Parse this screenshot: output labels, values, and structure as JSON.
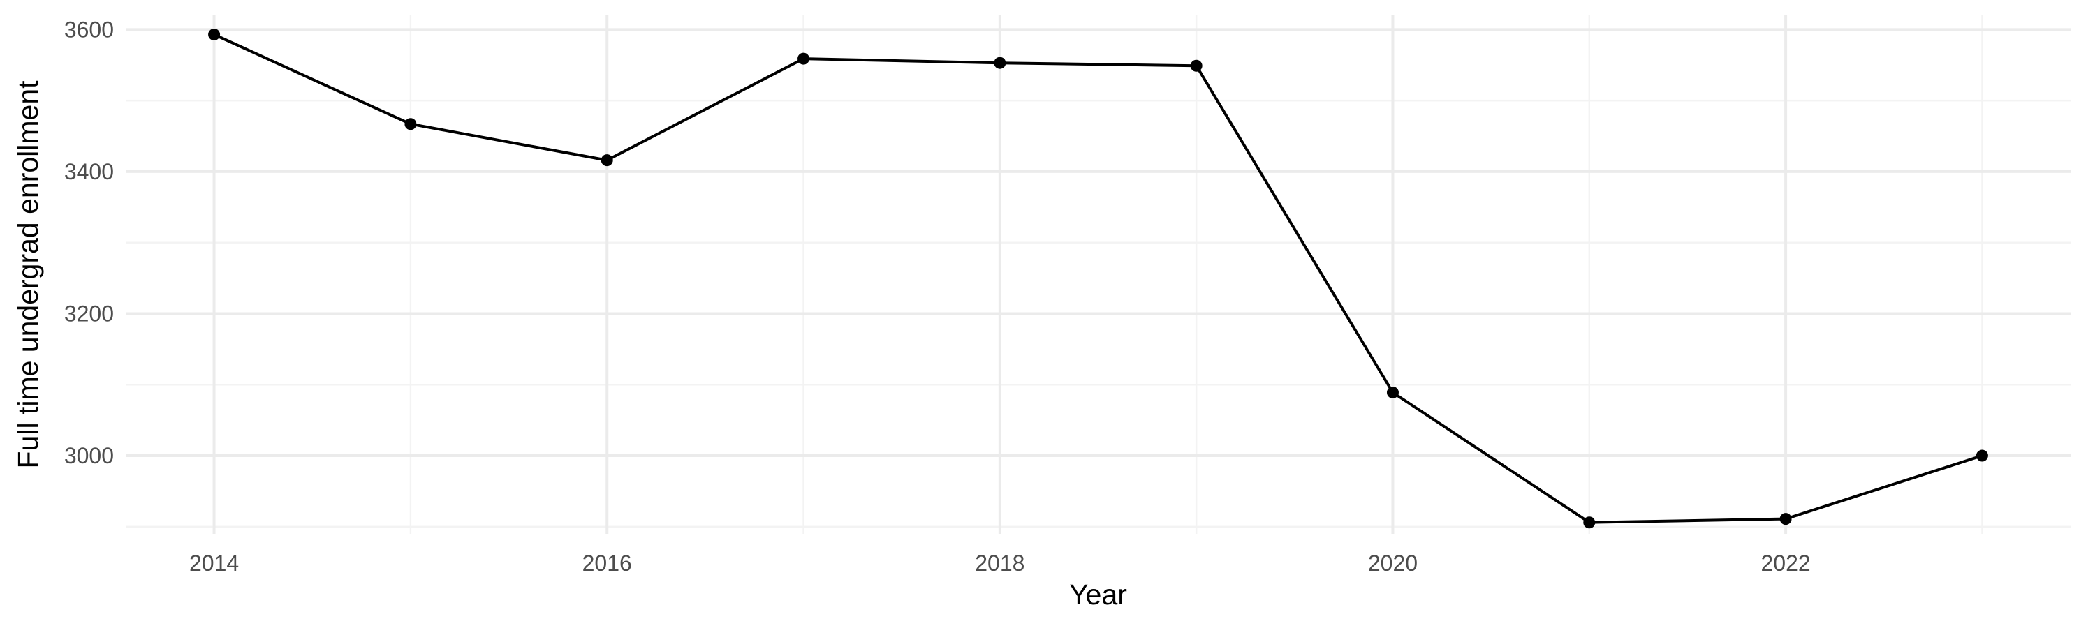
{
  "chart_data": {
    "type": "line",
    "title": "",
    "xlabel": "Year",
    "ylabel": "Full time undergrad enrollment",
    "x": [
      2014,
      2015,
      2016,
      2017,
      2018,
      2019,
      2020,
      2021,
      2022,
      2023
    ],
    "series": [
      {
        "values": [
          3593,
          3467,
          3416,
          3559,
          3553,
          3549,
          3089,
          2906,
          2911,
          3000
        ]
      }
    ],
    "x_ticks": [
      "2014",
      "2016",
      "2018",
      "2020",
      "2022"
    ],
    "y_ticks": [
      "3000",
      "3200",
      "3400",
      "3600"
    ],
    "xlim": [
      2013.55,
      2023.45
    ],
    "ylim": [
      2890,
      3620
    ],
    "grid": true,
    "legend": "none",
    "colors": {
      "line": "#000000",
      "grid_major": "#ebebeb",
      "grid_minor": "#f3f3f3",
      "tick_text": "#4d4d4d"
    }
  }
}
